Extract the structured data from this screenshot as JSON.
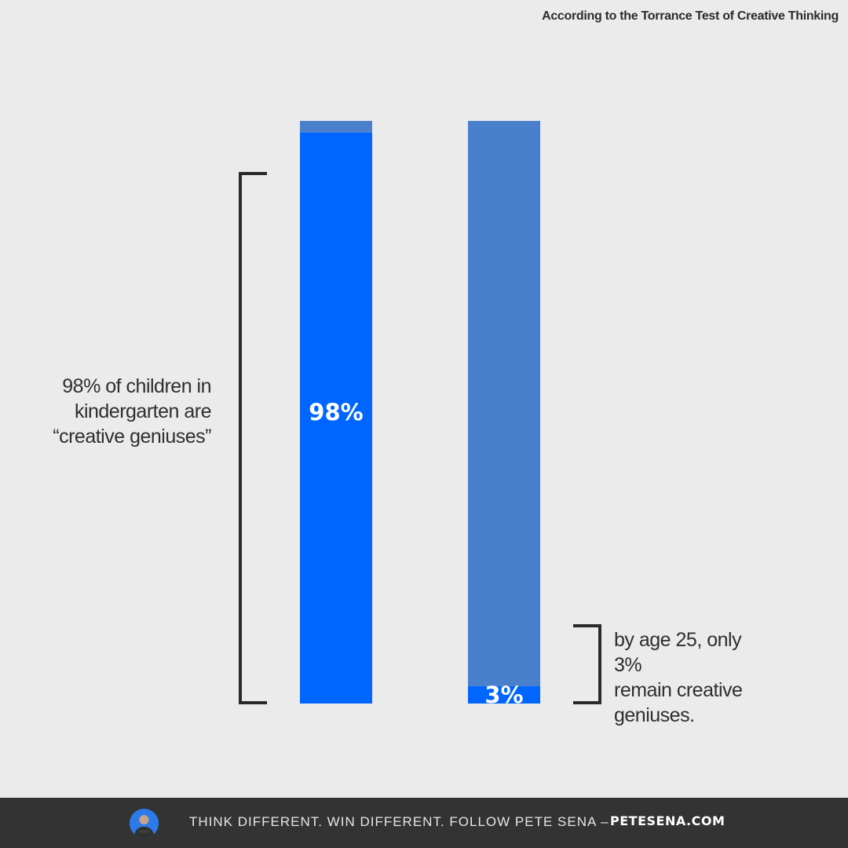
{
  "source_note": "According to the Torrance Test of Creative Thinking",
  "annotations": {
    "left_lines": [
      "98% of children in",
      "kindergarten are",
      "“creative geniuses”"
    ],
    "right_lines": [
      "by age 25, only 3%",
      "remain creative",
      "geniuses."
    ]
  },
  "footer": {
    "tagline": "THINK DIFFERENT. WIN DIFFERENT. FOLLOW PETE SENA –",
    "link": "PETESENA.COM",
    "avatar_icon": "person-avatar-icon"
  },
  "colors": {
    "background": "#ebebeb",
    "highlight": "#0066ff",
    "remainder": "#4a7fcc",
    "bracket": "#2a2a2a",
    "footer_bg": "#333333"
  },
  "chart_data": {
    "type": "bar",
    "stacked": true,
    "categories": [
      "",
      ""
    ],
    "ylim": [
      0,
      100
    ],
    "series": [
      {
        "values": [
          98,
          3
        ],
        "color": "#0066ff"
      },
      {
        "values": [
          2,
          97
        ],
        "color": "#4a7fcc"
      }
    ],
    "data_labels": [
      "98%",
      "3%"
    ],
    "grid": false,
    "legend": "none"
  }
}
